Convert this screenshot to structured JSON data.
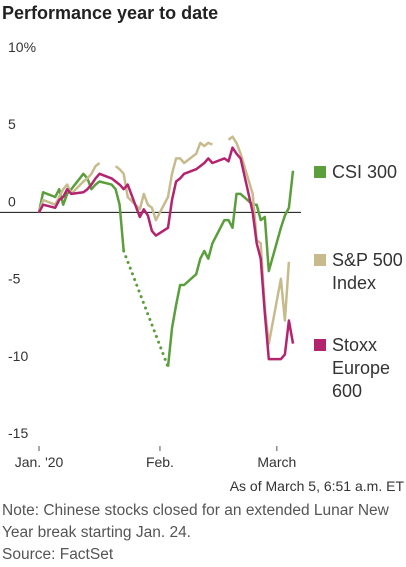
{
  "chart_data": {
    "type": "line",
    "title": "Performance year to date",
    "x": [
      2,
      3,
      6,
      7,
      8,
      9,
      10,
      13,
      14,
      15,
      16,
      17,
      20,
      21,
      22,
      23,
      24,
      27,
      28,
      29,
      30,
      31,
      34,
      35,
      36,
      37,
      38,
      41,
      42,
      43,
      44,
      45,
      48,
      49,
      50,
      51,
      52,
      55,
      56,
      57,
      58,
      59,
      62,
      63,
      64,
      65
    ],
    "xlim": [
      1,
      66
    ],
    "xticks": [
      {
        "value": 2,
        "label": "Jan. '20"
      },
      {
        "value": 32,
        "label": "Feb."
      },
      {
        "value": 61,
        "label": "March"
      }
    ],
    "ylim": [
      -15,
      10
    ],
    "yticks": [
      {
        "value": 10,
        "label": "10%"
      },
      5,
      0,
      -5,
      -10,
      -15
    ],
    "zero_line": true,
    "series": [
      {
        "name": "CSI 300",
        "color": "#5b9e3c",
        "bridge_gaps": "dotted",
        "values": [
          0,
          1.3,
          1,
          1.5,
          0.5,
          1.2,
          1.5,
          2.5,
          2.2,
          1.5,
          1.8,
          2,
          1.8,
          1.5,
          0.5,
          -2.5,
          null,
          null,
          null,
          null,
          null,
          null,
          -10,
          -7.5,
          -6,
          -4.7,
          -4.7,
          -4,
          -3,
          -2.5,
          -3,
          -2,
          -0.5,
          -0.5,
          -1,
          1.2,
          1.2,
          0.5,
          0.5,
          -0.5,
          -0.3,
          -3.8,
          -1,
          -0.2,
          0.3,
          2.7
        ]
      },
      {
        "name": "S&P 500 Index",
        "color": "#c7bb8e",
        "values": [
          0,
          0.8,
          0.5,
          1,
          1.5,
          1.8,
          1.2,
          2,
          2.2,
          2.5,
          3,
          3.2,
          null,
          3,
          2.8,
          2.5,
          1,
          0.2,
          1.2,
          0.5,
          0.3,
          -0.5,
          1,
          2.5,
          3.5,
          3.5,
          3.2,
          3.8,
          4.5,
          4.3,
          4.5,
          4.4,
          null,
          4.7,
          4.9,
          4.5,
          3.8,
          1.2,
          -1.8,
          -2,
          -6.2,
          -8.5,
          -4.3,
          -7,
          -3.2,
          null
        ]
      },
      {
        "name": "Stoxx Europe 600",
        "color": "#b4236e",
        "values": [
          0,
          0.5,
          0.3,
          0.8,
          1,
          1.5,
          1.2,
          1.3,
          1.5,
          1.8,
          2.2,
          2.5,
          2.2,
          2,
          1.8,
          1.5,
          1.8,
          -0.3,
          0.2,
          -0.2,
          -1.2,
          -1.5,
          -1,
          0.8,
          2,
          2.2,
          2.5,
          2.8,
          3,
          3.2,
          3.5,
          3.2,
          3.5,
          3.3,
          4.2,
          3.8,
          3.5,
          0,
          -2,
          -3,
          -6.5,
          -9.5,
          -9.5,
          -9.2,
          -7,
          -8.5
        ]
      }
    ],
    "timestamp": "As of March 5, 6:51 a.m. ET",
    "note": "Note: Chinese stocks closed for an extended Lunar New Year break starting Jan. 24.",
    "source": "Source: FactSet"
  }
}
